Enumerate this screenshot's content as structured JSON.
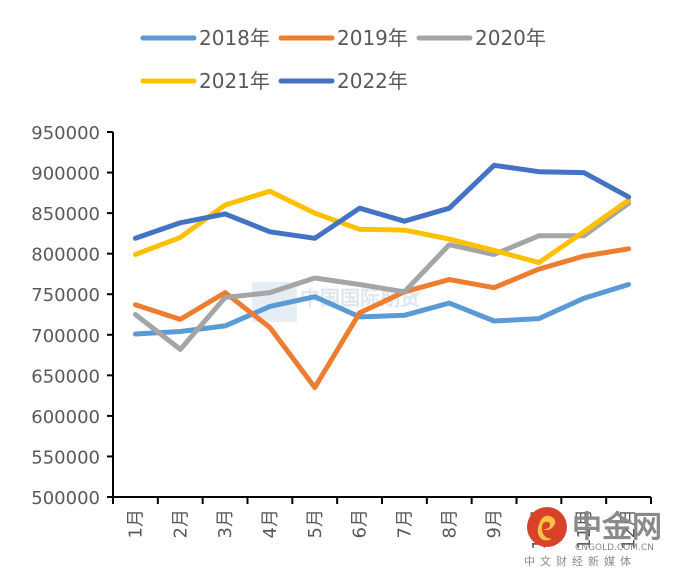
{
  "chart_data": {
    "type": "line",
    "title": "",
    "xlabel": "",
    "ylabel": "",
    "categories": [
      "1月",
      "2月",
      "3月",
      "4月",
      "5月",
      "6月",
      "7月",
      "8月",
      "9月",
      "10月",
      "11月",
      "12月"
    ],
    "ylim": [
      500000,
      950000
    ],
    "yticks": [
      500000,
      550000,
      600000,
      650000,
      700000,
      750000,
      800000,
      850000,
      900000,
      950000
    ],
    "ytick_labels": [
      "500000",
      "550000",
      "600000",
      "650000",
      "700000",
      "750000",
      "800000",
      "850000",
      "900000",
      "950000"
    ],
    "grid": false,
    "legend_position": "top",
    "series": [
      {
        "name": "2018年",
        "color": "#5B9BD5",
        "values": [
          701000,
          704000,
          711000,
          735000,
          747000,
          722000,
          724000,
          739000,
          717000,
          720000,
          745000,
          762000
        ]
      },
      {
        "name": "2019年",
        "color": "#ED7D31",
        "values": [
          737000,
          719000,
          752000,
          709000,
          635000,
          727000,
          753000,
          768000,
          758000,
          781000,
          797000,
          806000
        ]
      },
      {
        "name": "2020年",
        "color": "#A5A5A5",
        "values": [
          725000,
          682000,
          746000,
          752000,
          770000,
          762000,
          753000,
          811000,
          799000,
          822000,
          822000,
          862000
        ]
      },
      {
        "name": "2021年",
        "color": "#FFC000",
        "values": [
          799000,
          820000,
          860000,
          877000,
          850000,
          830000,
          829000,
          818000,
          804000,
          789000,
          827000,
          866000
        ]
      },
      {
        "name": "2022年",
        "color": "#4472C4",
        "values": [
          819000,
          838000,
          849000,
          827000,
          819000,
          856000,
          840000,
          856000,
          909000,
          901000,
          900000,
          870000
        ]
      }
    ]
  },
  "watermarks": {
    "center": "中国国际期货",
    "logo_cn": "中金网",
    "logo_en": "CNGOLD.COM.CN",
    "logo_sub": "中文财经新媒体",
    "logo_color": "#d9412a",
    "logo_swirl_color": "#f5c242"
  }
}
